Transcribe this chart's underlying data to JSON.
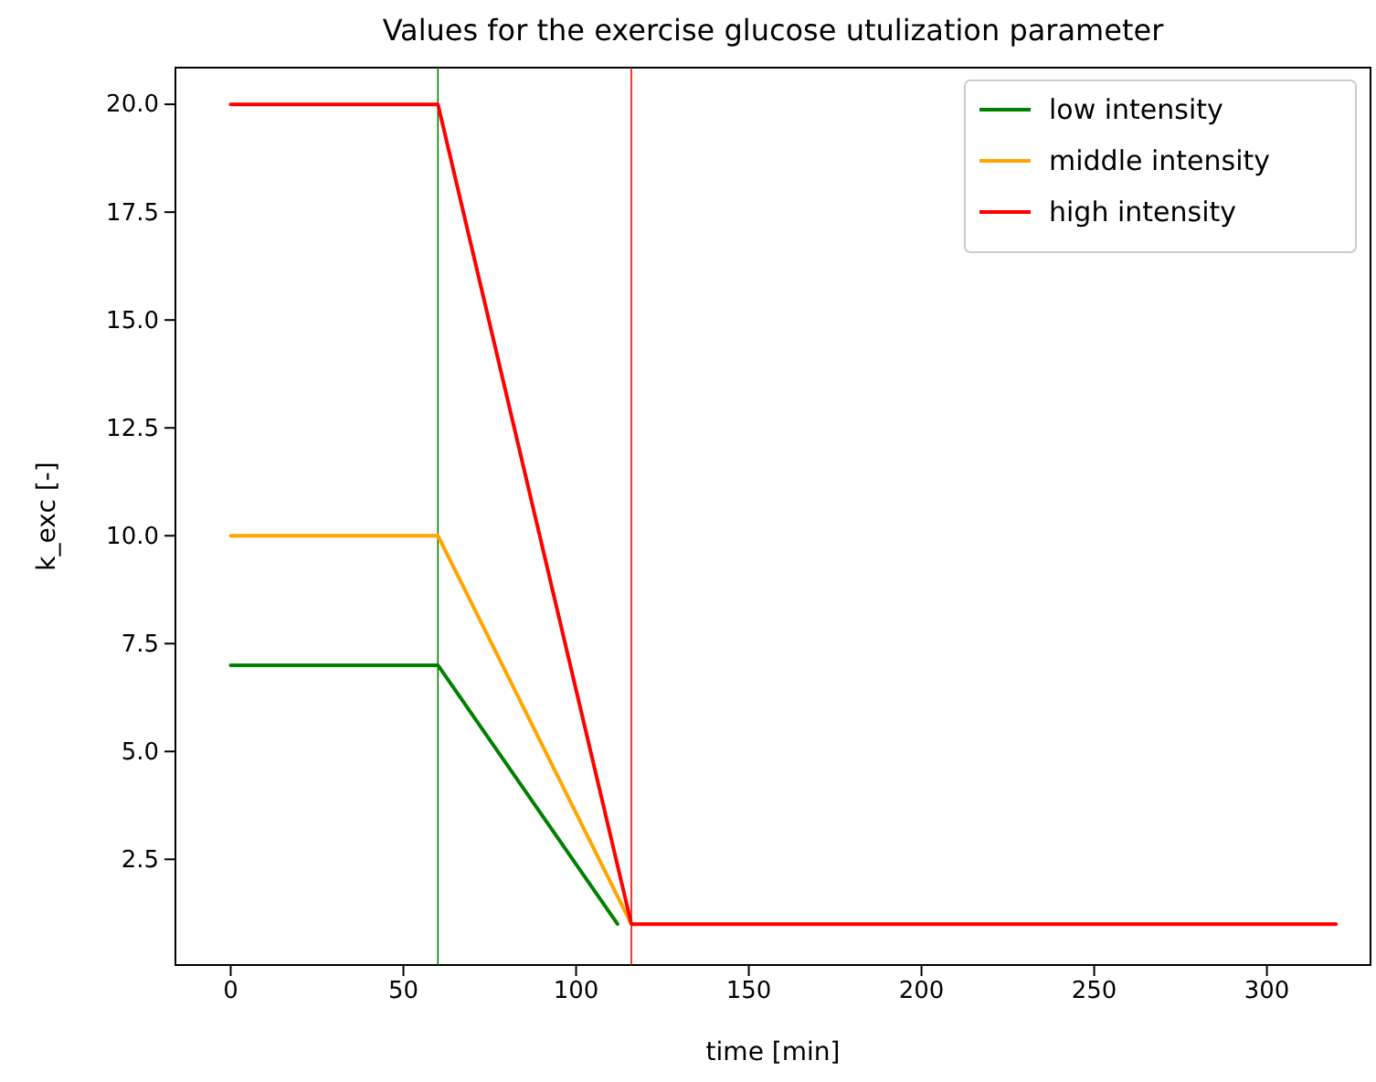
{
  "chart_data": {
    "type": "line",
    "title": "Values for the exercise glucose utulization parameter",
    "xlabel": "time [min]",
    "ylabel": "k_exc [-]",
    "xlim": [
      -16,
      330
    ],
    "xticks": [
      0,
      50,
      100,
      150,
      200,
      250,
      300
    ],
    "ylim": [
      0.05,
      20.85
    ],
    "yticks": [
      {
        "value": 2.5,
        "label": "2.5"
      },
      {
        "value": 5,
        "label": "5.0"
      },
      {
        "value": 7.5,
        "label": "7.5"
      },
      {
        "value": 10,
        "label": "10.0"
      },
      {
        "value": 12.5,
        "label": "12.5"
      },
      {
        "value": 15,
        "label": "15.0"
      },
      {
        "value": 17.5,
        "label": "17.5"
      },
      {
        "value": 20,
        "label": "20.0"
      }
    ],
    "legend": "top right",
    "grid": false,
    "line_style": "solid",
    "series": [
      {
        "name": "low intensity",
        "color": "#008000",
        "x": [
          0,
          60,
          112
        ],
        "values": [
          7,
          7,
          1
        ]
      },
      {
        "name": "middle intensity",
        "color": "#ffa500",
        "x": [
          0,
          60,
          116
        ],
        "values": [
          10,
          10,
          1
        ]
      },
      {
        "name": "high intensity",
        "color": "#ff0000",
        "x": [
          0,
          60,
          116,
          320
        ],
        "values": [
          20,
          20,
          1,
          1
        ]
      }
    ],
    "ref_lines": [
      {
        "axis": "x",
        "value": 60,
        "color": "#008000"
      },
      {
        "axis": "x",
        "value": 116,
        "color": "#ff0000"
      }
    ]
  }
}
